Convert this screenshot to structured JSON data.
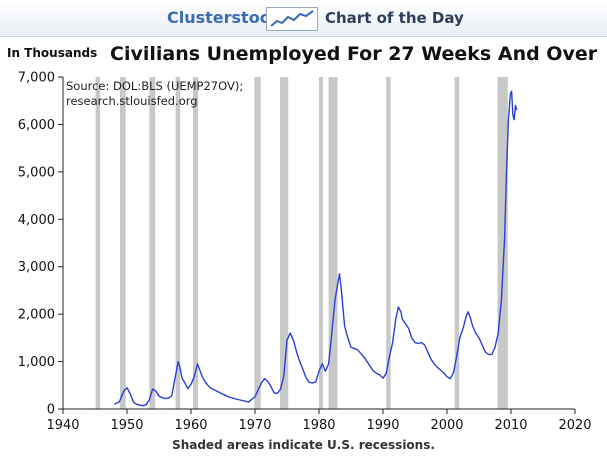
{
  "banner": {
    "brand": "Clusterstock",
    "subtitle": "Chart of the Day",
    "logo_icon": "trend-line-icon"
  },
  "unit_label": "In Thousands",
  "source_note": {
    "line1": "Source: DOL:BLS (UEMP27OV);",
    "line2": "research.stlouisfed.org"
  },
  "caption": "Shaded areas indicate U.S. recessions.",
  "colors": {
    "line": "#2b3fd6",
    "recession": "#c8c8c8",
    "axis": "#222222",
    "brand": "#3a6cb3"
  },
  "chart_data": {
    "type": "line",
    "title": "Civilians Unemployed For 27 Weeks And Over",
    "xlabel": "",
    "ylabel": "In Thousands",
    "xlim": [
      1940,
      2020
    ],
    "ylim": [
      0,
      7000
    ],
    "x_ticks": [
      "1940",
      "1950",
      "1960",
      "1970",
      "1980",
      "1990",
      "2000",
      "2010",
      "2020"
    ],
    "y_ticks": [
      "0",
      "1,000",
      "2,000",
      "3,000",
      "4,000",
      "5,000",
      "6,000",
      "7,000"
    ],
    "grid": false,
    "recessions": [
      [
        1945.1,
        1945.8
      ],
      [
        1948.9,
        1949.8
      ],
      [
        1953.5,
        1954.4
      ],
      [
        1957.6,
        1958.3
      ],
      [
        1960.3,
        1961.1
      ],
      [
        1969.9,
        1970.9
      ],
      [
        1973.9,
        1975.2
      ],
      [
        1980.0,
        1980.5
      ],
      [
        1981.5,
        1982.9
      ],
      [
        1990.5,
        1991.2
      ],
      [
        2001.2,
        2001.9
      ],
      [
        2007.9,
        2009.5
      ]
    ],
    "series": [
      {
        "x": [
          1948.0,
          1948.8,
          1949.5,
          1950.0,
          1950.5,
          1951.0,
          1951.5,
          1952.0,
          1952.5,
          1953.0,
          1953.5,
          1954.0,
          1954.5,
          1955.0,
          1955.5,
          1956.0,
          1956.5,
          1957.0,
          1957.5,
          1958.0,
          1958.3,
          1958.6,
          1959.0,
          1959.5,
          1960.0,
          1960.5,
          1961.0,
          1961.3,
          1961.7,
          1962.0,
          1962.5,
          1963.0,
          1964.0,
          1965.0,
          1966.0,
          1967.0,
          1968.0,
          1969.0,
          1970.0,
          1971.0,
          1971.5,
          1972.0,
          1972.5,
          1973.0,
          1973.5,
          1974.0,
          1974.5,
          1975.0,
          1975.5,
          1976.0,
          1976.5,
          1977.0,
          1977.5,
          1978.0,
          1978.5,
          1979.0,
          1979.5,
          1980.0,
          1980.5,
          1981.0,
          1981.5,
          1982.0,
          1982.5,
          1983.0,
          1983.2,
          1983.5,
          1984.0,
          1984.5,
          1985.0,
          1986.0,
          1987.0,
          1988.0,
          1988.5,
          1989.0,
          1989.5,
          1990.0,
          1990.5,
          1991.0,
          1991.5,
          1992.0,
          1992.4,
          1992.8,
          1993.0,
          1993.5,
          1994.0,
          1994.5,
          1995.0,
          1995.5,
          1996.0,
          1996.5,
          1997.0,
          1997.5,
          1998.0,
          1998.5,
          1999.0,
          1999.5,
          2000.0,
          2000.5,
          2001.0,
          2001.5,
          2002.0,
          2002.5,
          2003.0,
          2003.3,
          2003.7,
          2004.0,
          2004.5,
          2005.0,
          2005.5,
          2006.0,
          2006.5,
          2007.0,
          2007.5,
          2008.0,
          2008.5,
          2009.0,
          2009.3,
          2009.6,
          2009.9,
          2010.1,
          2010.3,
          2010.5,
          2010.7,
          2010.9
        ],
        "values": [
          100,
          150,
          380,
          450,
          320,
          150,
          100,
          80,
          70,
          90,
          200,
          420,
          380,
          270,
          240,
          220,
          230,
          280,
          650,
          1000,
          870,
          650,
          560,
          430,
          520,
          680,
          950,
          850,
          700,
          620,
          520,
          450,
          380,
          310,
          250,
          210,
          180,
          150,
          260,
          550,
          640,
          580,
          470,
          340,
          330,
          420,
          700,
          1450,
          1600,
          1450,
          1200,
          1000,
          830,
          650,
          560,
          550,
          570,
          800,
          950,
          800,
          950,
          1600,
          2300,
          2700,
          2850,
          2500,
          1750,
          1500,
          1300,
          1250,
          1100,
          900,
          800,
          750,
          720,
          650,
          750,
          1100,
          1400,
          1900,
          2150,
          2050,
          1900,
          1800,
          1700,
          1500,
          1400,
          1380,
          1400,
          1350,
          1200,
          1050,
          950,
          880,
          820,
          760,
          680,
          640,
          760,
          1100,
          1500,
          1700,
          1950,
          2050,
          1900,
          1750,
          1600,
          1500,
          1350,
          1200,
          1150,
          1150,
          1300,
          1600,
          2300,
          3600,
          5000,
          6100,
          6650,
          6700,
          6200,
          6100,
          6400,
          6300
        ]
      }
    ]
  }
}
